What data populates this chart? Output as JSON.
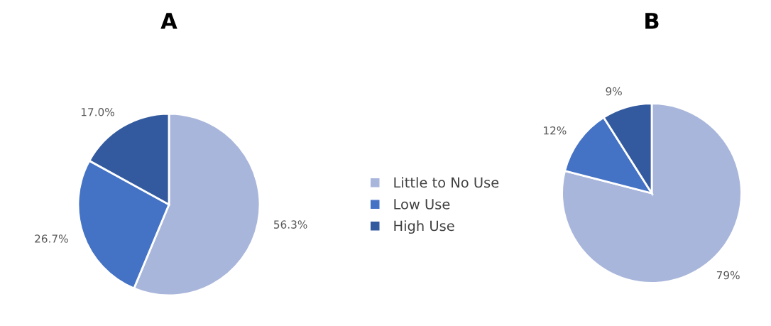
{
  "chart_data": [
    {
      "type": "pie",
      "title": "A",
      "categories": [
        "Little to No Use",
        "Low Use",
        "High Use"
      ],
      "values": [
        56.3,
        26.7,
        17.0
      ],
      "colors": [
        "#a9b6db",
        "#4472c4",
        "#335a9e"
      ],
      "value_labels": [
        "56.3%",
        "26.7%",
        "17.0%"
      ],
      "legend": "right"
    },
    {
      "type": "pie",
      "title": "B",
      "categories": [
        null,
        null,
        null
      ],
      "values": [
        79,
        12,
        9
      ],
      "colors": [
        "#a9b6db",
        "#4472c4",
        "#335a9e"
      ],
      "value_labels": [
        "79%",
        "12%",
        "9%"
      ]
    }
  ]
}
